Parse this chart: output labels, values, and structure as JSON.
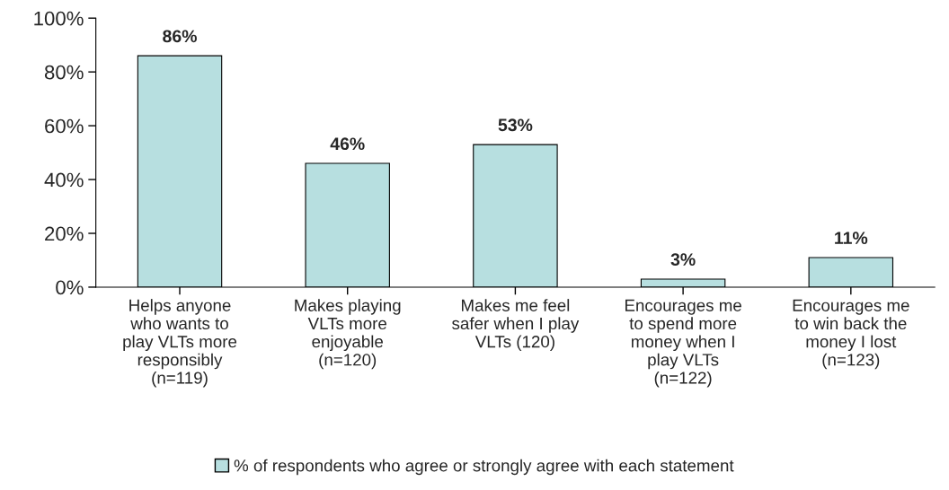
{
  "chart_data": {
    "type": "bar",
    "categories": [
      "Helps anyone\nwho wants to\nplay VLTs more\nresponsibly\n(n=119)",
      "Makes playing\nVLTs more\nenjoyable\n(n=120)",
      "Makes me feel\nsafer when I play\nVLTs (120)",
      "Encourages me\nto spend more\nmoney when I\nplay VLTs\n(n=122)",
      "Encourages me\nto win back the\nmoney I lost\n(n=123)"
    ],
    "series": [
      {
        "name": "% of respondents who agree or strongly agree with each statement",
        "color": "#b7dfe0",
        "values": [
          86,
          46,
          53,
          3,
          11
        ]
      }
    ],
    "value_labels": [
      "86%",
      "46%",
      "53%",
      "3%",
      "11%"
    ],
    "ylim": [
      0,
      100
    ],
    "yticks": [
      {
        "value": 0,
        "label": "0%"
      },
      {
        "value": 20,
        "label": "20%"
      },
      {
        "value": 40,
        "label": "40%"
      },
      {
        "value": 60,
        "label": "60%"
      },
      {
        "value": 80,
        "label": "80%"
      },
      {
        "value": 100,
        "label": "100%"
      }
    ],
    "grid": false,
    "legend": "bottom"
  }
}
